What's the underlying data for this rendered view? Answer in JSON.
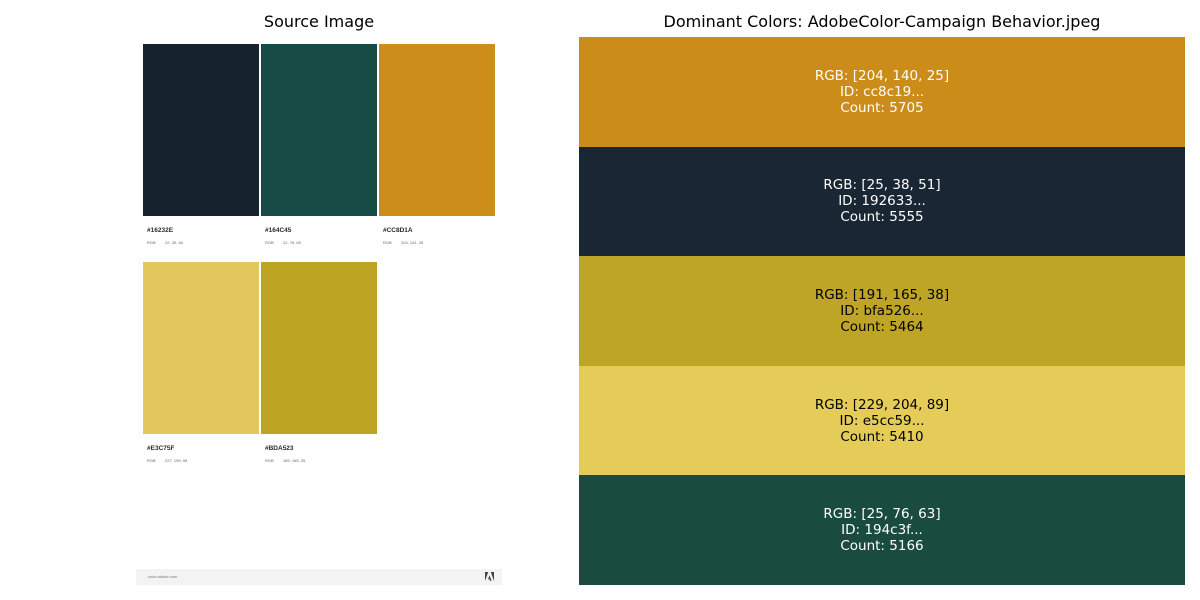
{
  "titles": {
    "left": "Source Image",
    "right": "Dominant Colors: AdobeColor-Campaign Behavior.jpeg"
  },
  "source_image": {
    "swatches": [
      {
        "color": "#16232E",
        "hex": "#16232E",
        "rgb_key": "RGB",
        "rgb_value": "22, 35, 46"
      },
      {
        "color": "#164C45",
        "hex": "#164C45",
        "rgb_key": "RGB",
        "rgb_value": "22, 76, 69"
      },
      {
        "color": "#CC8D1A",
        "hex": "#CC8D1A",
        "rgb_key": "RGB",
        "rgb_value": "204, 141, 26"
      },
      {
        "color": "#E3C75F",
        "hex": "#E3C75F",
        "rgb_key": "RGB",
        "rgb_value": "227, 199, 95"
      },
      {
        "color": "#BDA523",
        "hex": "#BDA523",
        "rgb_key": "RGB",
        "rgb_value": "189, 165, 35"
      }
    ],
    "footer_text": "color.adobe.com",
    "footer_logo": "adobe-logo-icon"
  },
  "dominant_colors": [
    {
      "color": "#cc8c19",
      "text_color": "#ffffff",
      "rgb": "RGB: [204, 140, 25]",
      "id": "ID: cc8c19...",
      "count": "Count: 5705"
    },
    {
      "color": "#192633",
      "text_color": "#ffffff",
      "rgb": "RGB: [25, 38, 51]",
      "id": "ID: 192633...",
      "count": "Count: 5555"
    },
    {
      "color": "#bfa526",
      "text_color": "#000000",
      "rgb": "RGB: [191, 165, 38]",
      "id": "ID: bfa526...",
      "count": "Count: 5464"
    },
    {
      "color": "#e5cc59",
      "text_color": "#000000",
      "rgb": "RGB: [229, 204, 89]",
      "id": "ID: e5cc59...",
      "count": "Count: 5410"
    },
    {
      "color": "#194c3f",
      "text_color": "#ffffff",
      "rgb": "RGB: [25, 76, 63]",
      "id": "ID: 194c3f...",
      "count": "Count: 5166"
    }
  ]
}
